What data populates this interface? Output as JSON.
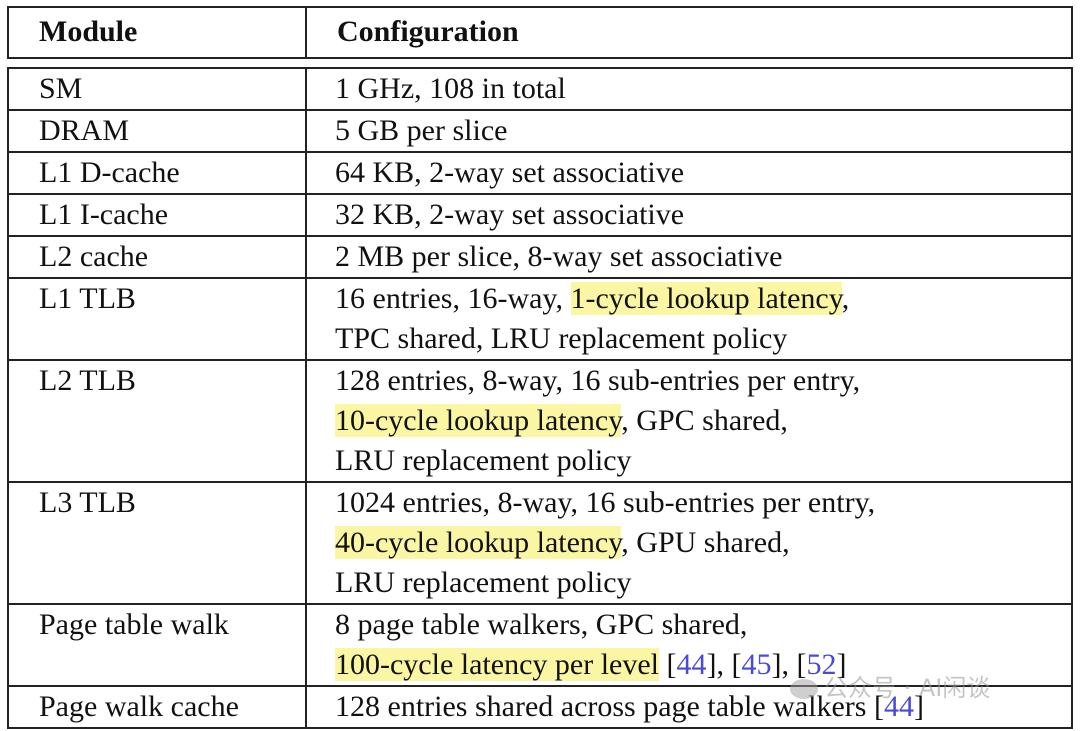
{
  "table": {
    "headers": [
      "Module",
      "Configuration"
    ],
    "rows": [
      {
        "module": "SM",
        "config_lines": [
          [
            {
              "text": "1 GHz, 108 in total"
            }
          ]
        ]
      },
      {
        "module": "DRAM",
        "config_lines": [
          [
            {
              "text": "5 GB per slice"
            }
          ]
        ]
      },
      {
        "module": "L1 D-cache",
        "config_lines": [
          [
            {
              "text": "64 KB, 2-way set associative"
            }
          ]
        ]
      },
      {
        "module": "L1 I-cache",
        "config_lines": [
          [
            {
              "text": "32 KB, 2-way set associative"
            }
          ]
        ]
      },
      {
        "module": "L2 cache",
        "config_lines": [
          [
            {
              "text": "2 MB per slice, 8-way set associative"
            }
          ]
        ]
      },
      {
        "module": "L1 TLB",
        "config_lines": [
          [
            {
              "text": "16 entries, 16-way, "
            },
            {
              "text": "1-cycle lookup latency",
              "highlight": true
            },
            {
              "text": ","
            }
          ],
          [
            {
              "text": "TPC shared, LRU replacement policy"
            }
          ]
        ]
      },
      {
        "module": "L2 TLB",
        "config_lines": [
          [
            {
              "text": "128 entries, 8-way, 16 sub-entries per entry,"
            }
          ],
          [
            {
              "text": "10-cycle lookup latency",
              "highlight": true
            },
            {
              "text": ", GPC shared,"
            }
          ],
          [
            {
              "text": "LRU replacement policy"
            }
          ]
        ]
      },
      {
        "module": "L3 TLB",
        "config_lines": [
          [
            {
              "text": "1024 entries, 8-way, 16 sub-entries per entry,"
            }
          ],
          [
            {
              "text": "40-cycle lookup latency",
              "highlight": true
            },
            {
              "text": ", GPU shared,"
            }
          ],
          [
            {
              "text": "LRU replacement policy"
            }
          ]
        ]
      },
      {
        "module": "Page table walk",
        "config_lines": [
          [
            {
              "text": "8 page table walkers, GPC shared,"
            }
          ],
          [
            {
              "text": "100-cycle latency per level",
              "highlight": true
            },
            {
              "text": " ["
            },
            {
              "text": "44",
              "ref": true
            },
            {
              "text": "], ["
            },
            {
              "text": "45",
              "ref": true
            },
            {
              "text": "], ["
            },
            {
              "text": "52",
              "ref": true
            },
            {
              "text": "]"
            }
          ]
        ]
      },
      {
        "module": "Page walk cache",
        "config_lines": [
          [
            {
              "text": "128 entries shared across page table walkers ["
            },
            {
              "text": "44",
              "ref": true
            },
            {
              "text": "]"
            }
          ]
        ]
      }
    ]
  },
  "watermark": {
    "text": "公众号 · AI闲谈"
  },
  "colors": {
    "highlight": "#fbf6a3",
    "reference_link": "#4a4ad6",
    "border": "#222222"
  }
}
